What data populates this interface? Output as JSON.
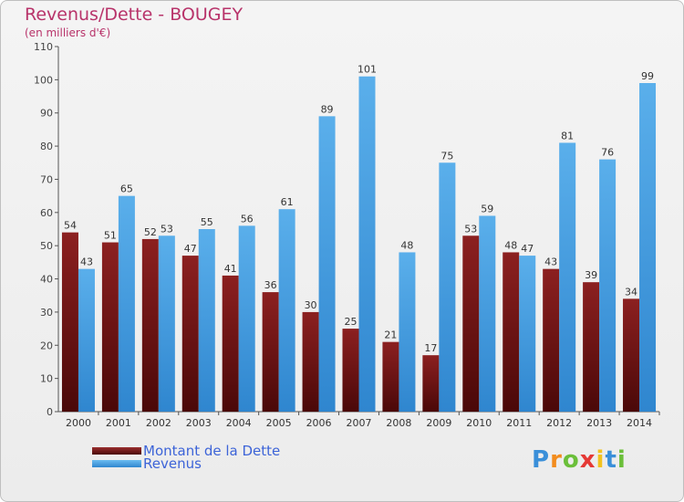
{
  "header": {
    "title": "Revenus/Dette - BOUGEY",
    "subtitle": "(en milliers d'€)"
  },
  "legend": {
    "debt_label": "Montant de la Dette",
    "revenue_label": "Revenus"
  },
  "logo": {
    "letters": [
      "P",
      "r",
      "o",
      "x",
      "i",
      "t",
      "i"
    ],
    "colors": [
      "#3a8fd9",
      "#f28c1e",
      "#6bbf3a",
      "#e53935",
      "#f2c21e",
      "#3a8fd9",
      "#6bbf3a"
    ]
  },
  "colors": {
    "debt": "#7a1515",
    "revenue": "#4a9fe0",
    "title": "#b8336a",
    "legend_text": "#3d64d8"
  },
  "chart_data": {
    "type": "bar",
    "title": "Revenus/Dette - BOUGEY",
    "subtitle": "(en milliers d'€)",
    "categories": [
      "2000",
      "2001",
      "2002",
      "2003",
      "2004",
      "2005",
      "2006",
      "2007",
      "2008",
      "2009",
      "2010",
      "2011",
      "2012",
      "2013",
      "2014"
    ],
    "series": [
      {
        "name": "Montant de la Dette",
        "values": [
          54,
          51,
          52,
          47,
          41,
          36,
          30,
          25,
          21,
          17,
          53,
          48,
          43,
          39,
          34
        ]
      },
      {
        "name": "Revenus",
        "values": [
          43,
          65,
          53,
          55,
          56,
          61,
          89,
          101,
          48,
          75,
          59,
          47,
          81,
          76,
          99
        ]
      }
    ],
    "ylim": [
      0,
      110
    ],
    "yticks": [
      0,
      10,
      20,
      30,
      40,
      50,
      60,
      70,
      80,
      90,
      100,
      110
    ],
    "grid": false,
    "legend_position": "bottom-left"
  }
}
